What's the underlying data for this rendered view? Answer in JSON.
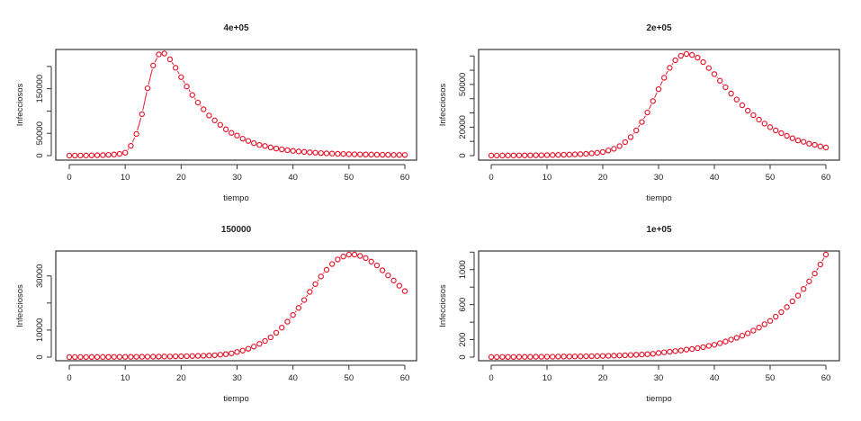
{
  "chart_data": [
    {
      "type": "scatter",
      "title": "4e+05",
      "xlabel": "tiempo",
      "ylabel": "Infecciosos",
      "xlim": [
        0,
        60
      ],
      "ylim": [
        0,
        230000
      ],
      "xticks": [
        0,
        10,
        20,
        30,
        40,
        50,
        60
      ],
      "yticks": [
        0,
        50000,
        100000,
        150000,
        200000
      ],
      "ytick_labels": [
        "0",
        "50000",
        "",
        "150000",
        ""
      ],
      "grid": false,
      "connecting_line_segments": true,
      "x": [
        0,
        1,
        2,
        3,
        4,
        5,
        6,
        7,
        8,
        9,
        10,
        11,
        12,
        13,
        14,
        15,
        16,
        17,
        18,
        19,
        20,
        21,
        22,
        23,
        24,
        25,
        26,
        27,
        28,
        29,
        30,
        31,
        32,
        33,
        34,
        35,
        36,
        37,
        38,
        39,
        40,
        41,
        42,
        43,
        44,
        45,
        46,
        47,
        48,
        49,
        50,
        51,
        52,
        53,
        54,
        55,
        56,
        57,
        58,
        59,
        60
      ],
      "values": [
        100,
        150,
        220,
        330,
        500,
        750,
        1100,
        1700,
        2600,
        4000,
        6500,
        22000,
        48600,
        93000,
        151000,
        202000,
        227000,
        229000,
        216000,
        197000,
        176000,
        155000,
        136000,
        119000,
        104000,
        90000,
        79000,
        69000,
        59000,
        51000,
        45000,
        38000,
        33000,
        28000,
        24000,
        21600,
        18500,
        16000,
        14000,
        12200,
        10700,
        9400,
        8300,
        7300,
        6500,
        5700,
        5100,
        4600,
        4100,
        3700,
        3300,
        3000,
        2700,
        2500,
        2300,
        2100,
        1900,
        1750,
        1600,
        1500,
        1400
      ]
    },
    {
      "type": "scatter",
      "title": "2e+05",
      "xlabel": "tiempo",
      "ylabel": "Infecciosos",
      "xlim": [
        0,
        60
      ],
      "ylim": [
        0,
        71400
      ],
      "xticks": [
        0,
        10,
        20,
        30,
        40,
        50,
        60
      ],
      "yticks": [
        0,
        10000,
        20000,
        30000,
        40000,
        50000,
        60000,
        70000
      ],
      "ytick_labels": [
        "0",
        "",
        "20000",
        "",
        "",
        "50000",
        "",
        ""
      ],
      "grid": false,
      "connecting_line_segments": true,
      "x": [
        0,
        1,
        2,
        3,
        4,
        5,
        6,
        7,
        8,
        9,
        10,
        11,
        12,
        13,
        14,
        15,
        16,
        17,
        18,
        19,
        20,
        21,
        22,
        23,
        24,
        25,
        26,
        27,
        28,
        29,
        30,
        31,
        32,
        33,
        34,
        35,
        36,
        37,
        38,
        39,
        40,
        41,
        42,
        43,
        44,
        45,
        46,
        47,
        48,
        49,
        50,
        51,
        52,
        53,
        54,
        55,
        56,
        57,
        58,
        59,
        60
      ],
      "values": [
        50,
        60,
        75,
        90,
        110,
        130,
        160,
        190,
        230,
        280,
        340,
        410,
        500,
        600,
        720,
        870,
        1050,
        1300,
        1600,
        2000,
        2500,
        3600,
        4800,
        6700,
        9500,
        13000,
        17700,
        23600,
        30300,
        38300,
        46700,
        54700,
        61700,
        67000,
        70100,
        71400,
        70700,
        68800,
        65700,
        61500,
        57300,
        52600,
        48000,
        43600,
        39400,
        35400,
        31600,
        28400,
        25300,
        22500,
        20000,
        17700,
        15800,
        13900,
        12200,
        10700,
        9700,
        8400,
        7600,
        6500,
        5700
      ]
    },
    {
      "type": "scatter",
      "title": "150000",
      "xlabel": "tiempo",
      "ylabel": "Infecciosos",
      "xlim": [
        0,
        60
      ],
      "ylim": [
        0,
        37900
      ],
      "xticks": [
        0,
        10,
        20,
        30,
        40,
        50,
        60
      ],
      "yticks": [
        0,
        10000,
        20000,
        30000
      ],
      "ytick_labels": [
        "0",
        "10000",
        "",
        "30000"
      ],
      "grid": false,
      "connecting_line_segments": false,
      "x": [
        0,
        1,
        2,
        3,
        4,
        5,
        6,
        7,
        8,
        9,
        10,
        11,
        12,
        13,
        14,
        15,
        16,
        17,
        18,
        19,
        20,
        21,
        22,
        23,
        24,
        25,
        26,
        27,
        28,
        29,
        30,
        31,
        32,
        33,
        34,
        35,
        36,
        37,
        38,
        39,
        40,
        41,
        42,
        43,
        44,
        45,
        46,
        47,
        48,
        49,
        50,
        51,
        52,
        53,
        54,
        55,
        56,
        57,
        58,
        59,
        60
      ],
      "values": [
        20,
        25,
        30,
        35,
        40,
        45,
        55,
        60,
        70,
        80,
        90,
        100,
        115,
        130,
        150,
        170,
        190,
        215,
        245,
        280,
        320,
        360,
        410,
        460,
        520,
        600,
        700,
        900,
        1100,
        1400,
        1900,
        2400,
        3100,
        3900,
        4900,
        6000,
        7300,
        9000,
        10900,
        13100,
        15600,
        18200,
        21100,
        24100,
        27000,
        29800,
        32300,
        34400,
        36100,
        37200,
        37900,
        37900,
        37400,
        36600,
        35300,
        33900,
        32100,
        30200,
        28300,
        26400,
        24400
      ]
    },
    {
      "type": "scatter",
      "title": "1e+05",
      "xlabel": "tiempo",
      "ylabel": "Infecciosos",
      "xlim": [
        0,
        60
      ],
      "ylim": [
        0,
        1172
      ],
      "xticks": [
        0,
        10,
        20,
        30,
        40,
        50,
        60
      ],
      "yticks": [
        0,
        200,
        400,
        600,
        800,
        1000,
        1200
      ],
      "ytick_labels": [
        "0",
        "200",
        "",
        "600",
        "",
        "1000",
        ""
      ],
      "grid": false,
      "connecting_line_segments": false,
      "x": [
        0,
        1,
        2,
        3,
        4,
        5,
        6,
        7,
        8,
        9,
        10,
        11,
        12,
        13,
        14,
        15,
        16,
        17,
        18,
        19,
        20,
        21,
        22,
        23,
        24,
        25,
        26,
        27,
        28,
        29,
        30,
        31,
        32,
        33,
        34,
        35,
        36,
        37,
        38,
        39,
        40,
        41,
        42,
        43,
        44,
        45,
        46,
        47,
        48,
        49,
        50,
        51,
        52,
        53,
        54,
        55,
        56,
        57,
        58,
        59,
        60
      ],
      "values": [
        1,
        1,
        2,
        2,
        2,
        3,
        3,
        3,
        4,
        4,
        5,
        5,
        6,
        7,
        7,
        8,
        9,
        10,
        11,
        12,
        14,
        15,
        17,
        19,
        21,
        24,
        27,
        30,
        34,
        38,
        48,
        55,
        62,
        69,
        76,
        86,
        93,
        103,
        114,
        128,
        141,
        159,
        179,
        200,
        221,
        245,
        272,
        303,
        338,
        376,
        414,
        462,
        514,
        572,
        638,
        703,
        779,
        866,
        955,
        1059,
        1172
      ]
    }
  ],
  "style": {
    "point_color": "#e3192f",
    "frame_color": "#333333"
  }
}
